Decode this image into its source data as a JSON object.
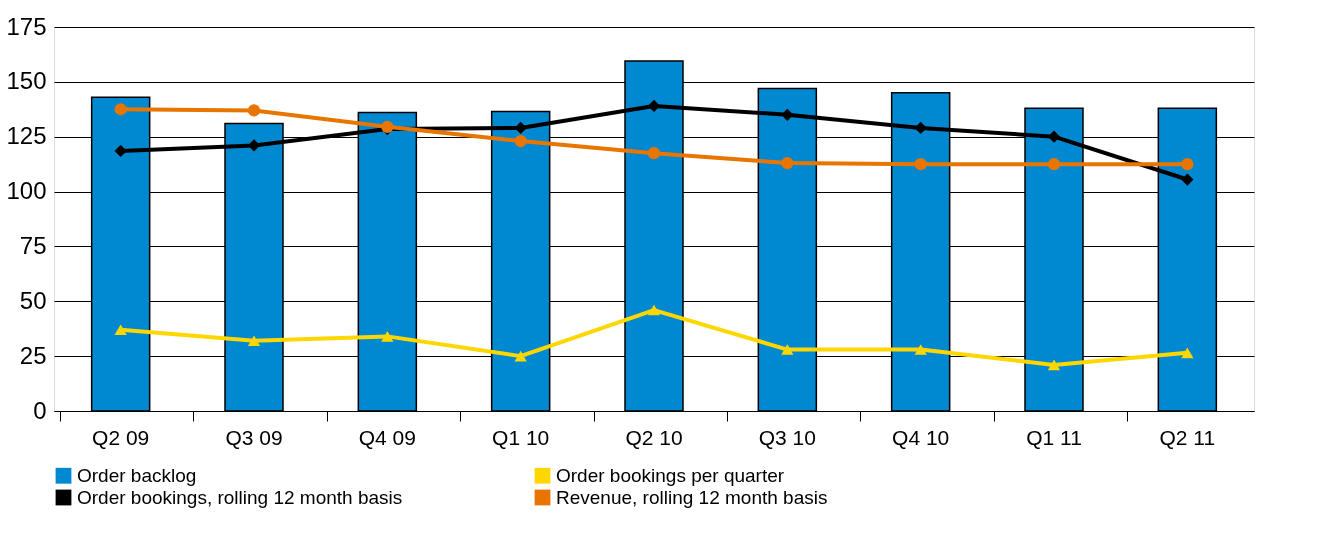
{
  "chart_data": {
    "type": "bar",
    "categories": [
      "Q2 09",
      "Q3 09",
      "Q4 09",
      "Q1 10",
      "Q2 10",
      "Q3 10",
      "Q4 10",
      "Q1 11",
      "Q2 11"
    ],
    "series": [
      {
        "name": "Order backlog",
        "color": "#0088d0",
        "values": [
          143,
          131,
          136,
          136.5,
          159.5,
          147,
          145,
          138,
          138
        ]
      },
      {
        "name": "Order bookings per quarter",
        "type": "line",
        "marker": "triangle",
        "color": "#ffd700",
        "values": [
          37,
          32,
          34,
          25,
          46,
          28,
          28,
          21,
          26.5
        ]
      },
      {
        "name": "Order bookings, rolling 12 month basis",
        "type": "line",
        "marker": "diamond",
        "color": "#000000",
        "values": [
          118.5,
          121,
          128.5,
          129,
          139,
          135,
          129,
          125,
          105.5
        ]
      },
      {
        "name": "Revenue, rolling 12 month basis",
        "type": "line",
        "marker": "circle",
        "color": "#e87500",
        "values": [
          137.5,
          137,
          129.5,
          123,
          117.5,
          113,
          112.5,
          112.5,
          112.5
        ]
      }
    ],
    "ylim": [
      0,
      175
    ],
    "yticks": [
      0,
      25,
      50,
      75,
      100,
      125,
      150,
      175
    ],
    "grid": "y",
    "legend": "bottom"
  }
}
